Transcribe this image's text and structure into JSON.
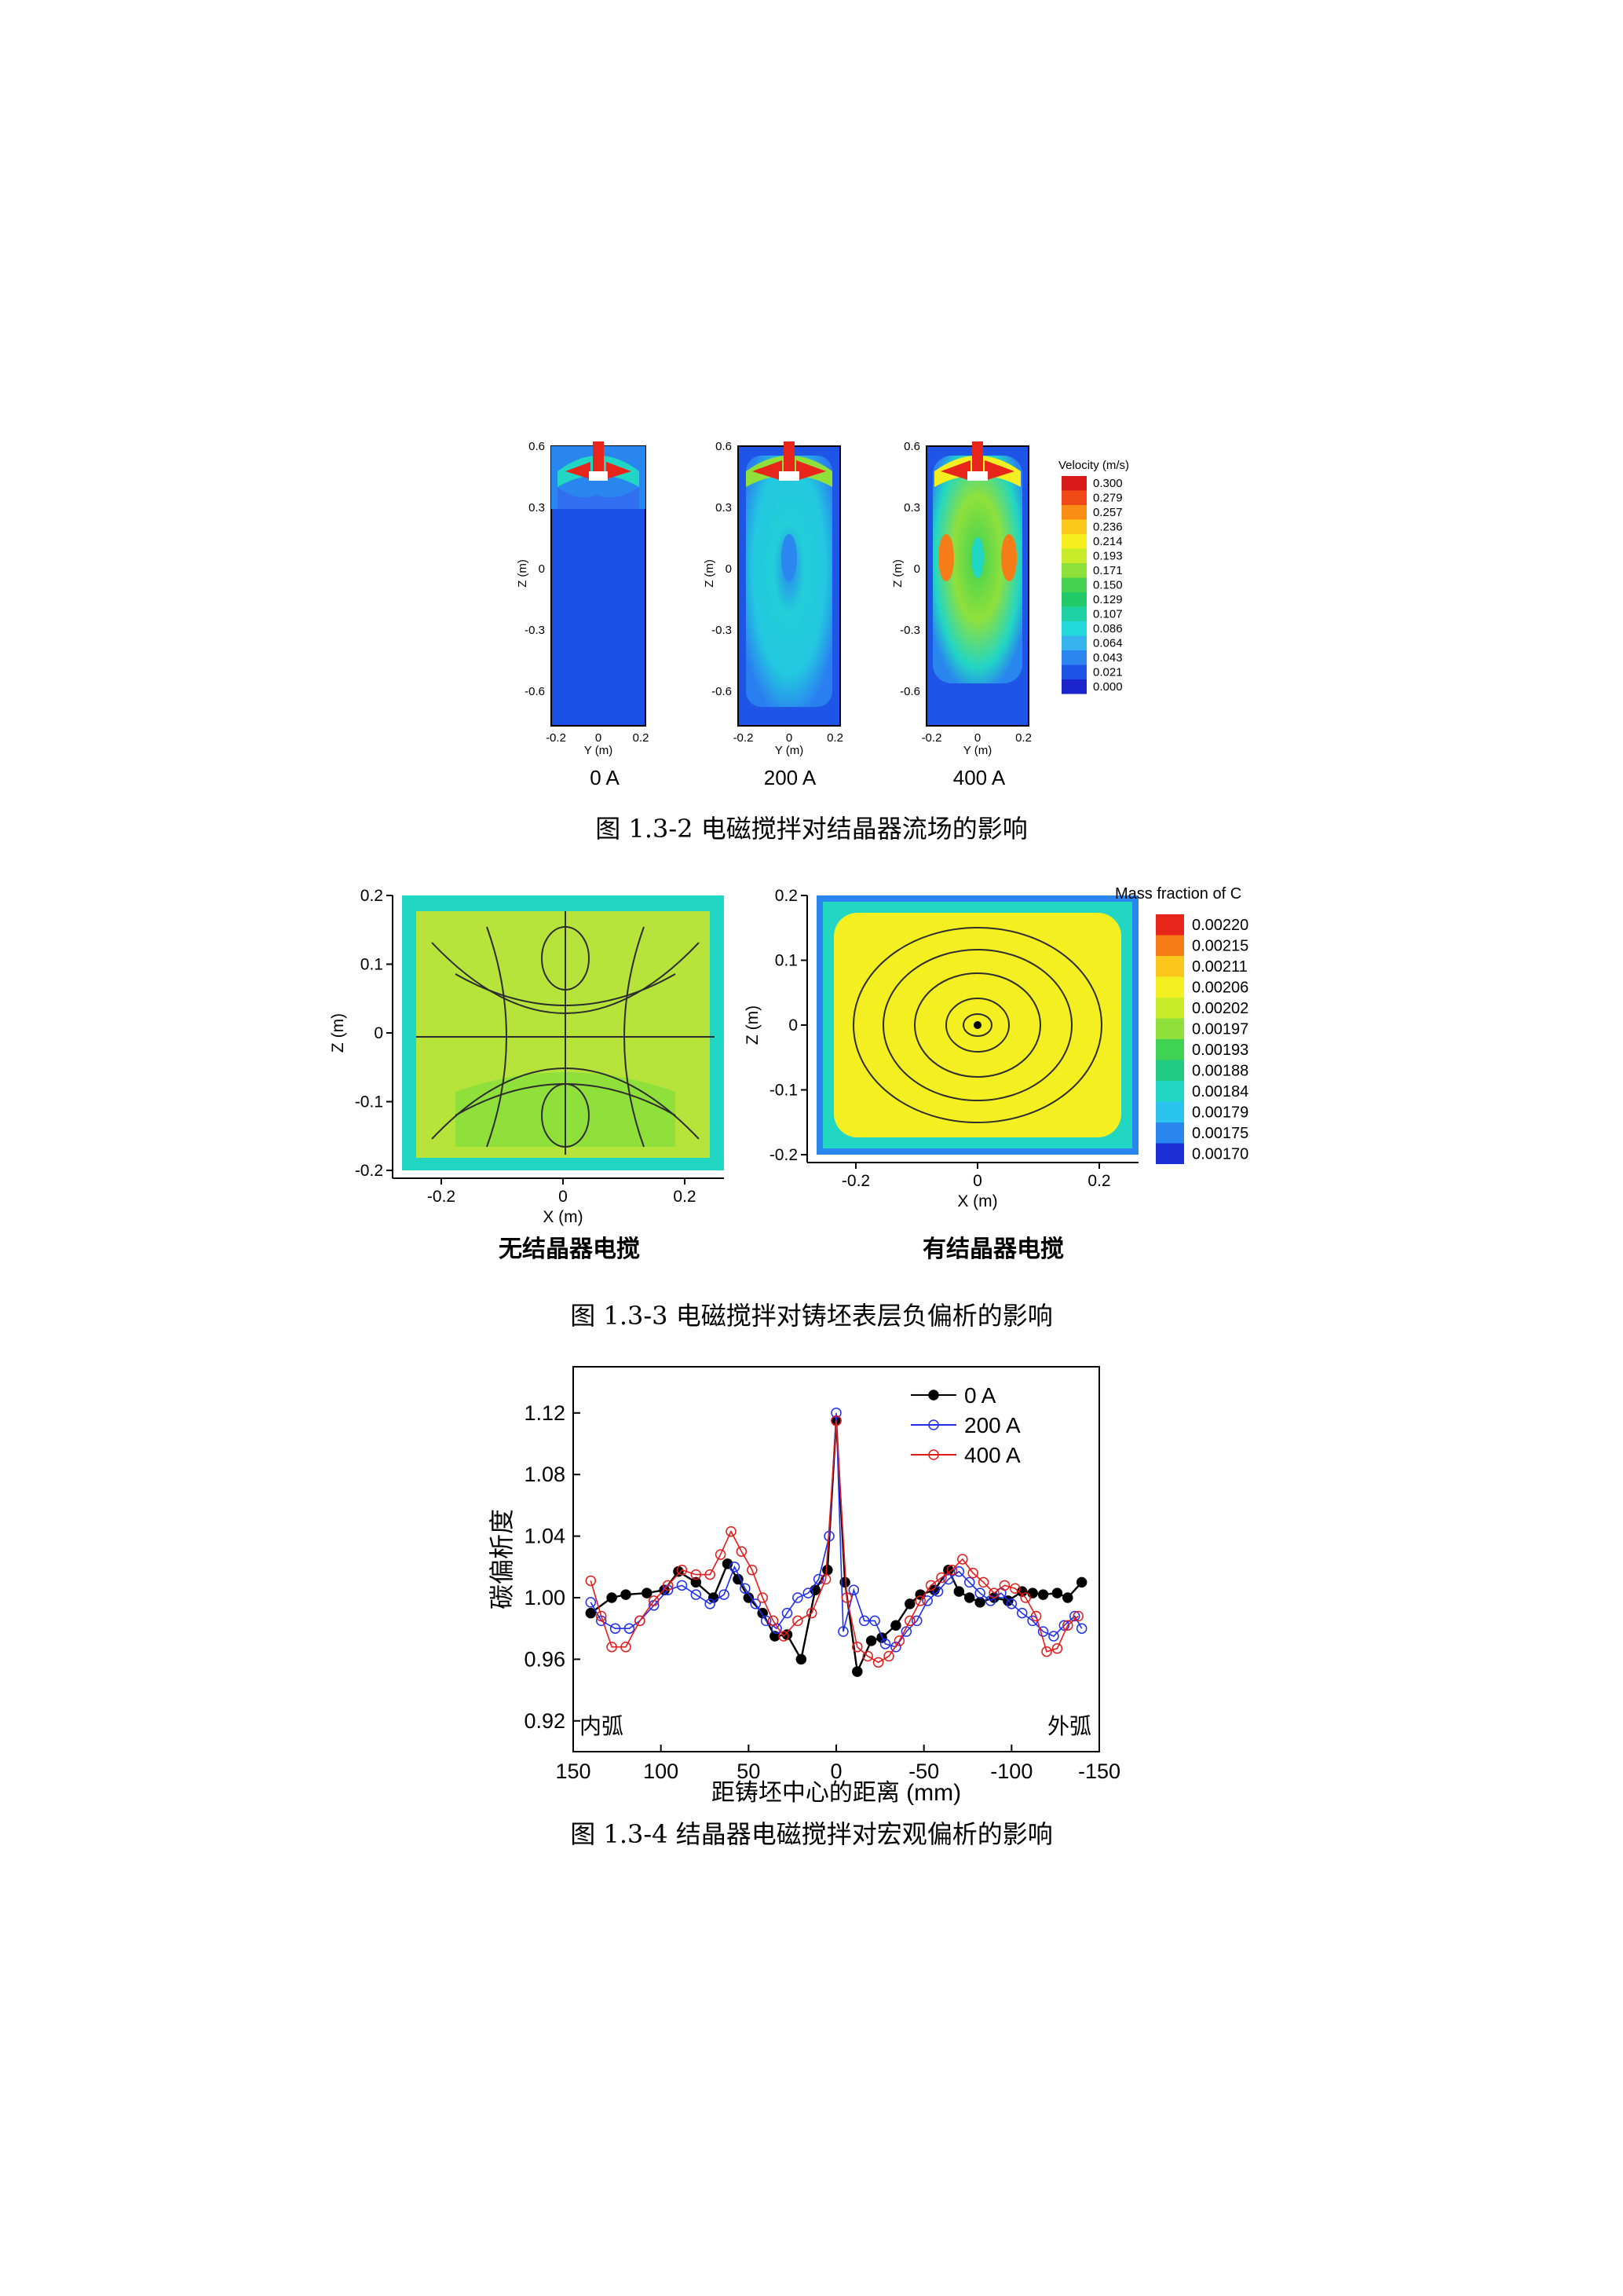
{
  "figure_2": {
    "caption": "图 1.3-2  电磁搅拌对结晶器流场的影响",
    "panels": [
      {
        "label": "0 A"
      },
      {
        "label": "200 A"
      },
      {
        "label": "400 A"
      }
    ],
    "y_axis_label": "Z (m)",
    "x_axis_label": "Y (m)",
    "y_ticks": [
      "0.6",
      "0.3",
      "0",
      "-0.3",
      "-0.6"
    ],
    "x_ticks": [
      "-0.2",
      "0",
      "0.2"
    ],
    "legend_title": "Velocity (m/s)",
    "legend_values": [
      "0.300",
      "0.279",
      "0.257",
      "0.236",
      "0.214",
      "0.193",
      "0.171",
      "0.150",
      "0.129",
      "0.107",
      "0.086",
      "0.064",
      "0.043",
      "0.021",
      "0.000"
    ],
    "legend_colors": [
      "#d7191c",
      "#f04b17",
      "#f98e14",
      "#fdc91b",
      "#f5ef1f",
      "#c8ec29",
      "#8ee03a",
      "#45d34f",
      "#21cb6a",
      "#1ed1a5",
      "#24d9d9",
      "#35b4ee",
      "#2b86f0",
      "#1f55e6",
      "#1a23cc"
    ]
  },
  "figure_3": {
    "caption": "图 1.3-3  电磁搅拌对铸坯表层负偏析的影响",
    "panels": [
      {
        "label": "无结晶器电搅"
      },
      {
        "label": "有结晶器电搅"
      }
    ],
    "y_axis_label": "Z (m)",
    "x_axis_label": "X (m)",
    "y_ticks": [
      "0.2",
      "0.1",
      "0",
      "-0.1",
      "-0.2"
    ],
    "x_ticks": [
      "-0.2",
      "0",
      "0.2"
    ],
    "legend_title": "Mass fraction of C",
    "legend_values": [
      "0.00220",
      "0.00215",
      "0.00211",
      "0.00206",
      "0.00202",
      "0.00197",
      "0.00193",
      "0.00188",
      "0.00184",
      "0.00179",
      "0.00175",
      "0.00170"
    ],
    "legend_colors": [
      "#e8251b",
      "#f67c17",
      "#fbc51c",
      "#f3ef20",
      "#c8ec2a",
      "#8fe03b",
      "#3fd253",
      "#22cb82",
      "#22d6c4",
      "#2bc4ee",
      "#2a86ef",
      "#1c2fd6"
    ]
  },
  "figure_4": {
    "caption": "图 1.3-4  结晶器电磁搅拌对宏观偏析的影响",
    "chart_data": {
      "type": "line",
      "xlabel": "距铸坯中心的距离 (mm)",
      "ylabel": "碳偏析度",
      "xlim": [
        150,
        -150
      ],
      "ylim": [
        0.9,
        1.15
      ],
      "x_ticks": [
        "150",
        "100",
        "50",
        "0",
        "-50",
        "-100",
        "-150"
      ],
      "x_tick_values": [
        150,
        100,
        50,
        0,
        -50,
        -100,
        -150
      ],
      "y_ticks": [
        "0.92",
        "0.96",
        "1.00",
        "1.04",
        "1.08",
        "1.12"
      ],
      "y_tick_values": [
        0.92,
        0.96,
        1.0,
        1.04,
        1.08,
        1.12
      ],
      "annotations": [
        "内弧",
        "外弧"
      ],
      "legend_position": "top-right",
      "series": [
        {
          "name": "0 A",
          "color": "#000000",
          "filled": true,
          "x": [
            140,
            128,
            120,
            108,
            98,
            90,
            80,
            70,
            62,
            56,
            50,
            42,
            35,
            28,
            20,
            12,
            5,
            0,
            -5,
            -12,
            -20,
            -26,
            -34,
            -42,
            -48,
            -56,
            -64,
            -70,
            -76,
            -82,
            -90,
            -98,
            -106,
            -112,
            -118,
            -126,
            -132,
            -140
          ],
          "y": [
            0.99,
            1.0,
            1.002,
            1.003,
            1.005,
            1.017,
            1.01,
            1.0,
            1.022,
            1.012,
            1.0,
            0.99,
            0.975,
            0.976,
            0.96,
            1.005,
            1.018,
            1.115,
            1.01,
            0.952,
            0.972,
            0.974,
            0.982,
            0.996,
            1.002,
            1.005,
            1.018,
            1.004,
            1.0,
            0.997,
            1.0,
            0.998,
            1.004,
            1.003,
            1.002,
            1.003,
            1.0,
            1.01
          ]
        },
        {
          "name": "200 A",
          "color": "#1f2ff0",
          "filled": false,
          "x": [
            140,
            134,
            126,
            118,
            112,
            104,
            96,
            88,
            80,
            72,
            64,
            58,
            52,
            46,
            40,
            34,
            28,
            22,
            16,
            10,
            4,
            0,
            -4,
            -10,
            -16,
            -22,
            -28,
            -34,
            -40,
            -46,
            -52,
            -58,
            -64,
            -70,
            -76,
            -82,
            -88,
            -94,
            -100,
            -106,
            -112,
            -118,
            -124,
            -130,
            -136,
            -140
          ],
          "y": [
            0.997,
            0.985,
            0.98,
            0.98,
            0.985,
            0.995,
            1.005,
            1.008,
            1.002,
            0.996,
            1.002,
            1.02,
            1.006,
            0.996,
            0.985,
            0.98,
            0.99,
            1.0,
            1.003,
            1.012,
            1.04,
            1.12,
            0.978,
            1.005,
            0.985,
            0.985,
            0.97,
            0.968,
            0.978,
            0.985,
            0.998,
            1.004,
            1.012,
            1.017,
            1.01,
            1.003,
            0.998,
            1.003,
            0.996,
            0.99,
            0.985,
            0.978,
            0.975,
            0.982,
            0.988,
            0.98
          ]
        },
        {
          "name": "400 A",
          "color": "#e21b1b",
          "filled": false,
          "x": [
            140,
            134,
            128,
            120,
            112,
            104,
            96,
            88,
            80,
            72,
            66,
            60,
            54,
            48,
            42,
            36,
            30,
            22,
            14,
            6,
            0,
            -6,
            -12,
            -18,
            -24,
            -30,
            -36,
            -42,
            -48,
            -54,
            -60,
            -66,
            -72,
            -78,
            -84,
            -90,
            -96,
            -102,
            -108,
            -114,
            -120,
            -126,
            -132,
            -138
          ],
          "y": [
            1.011,
            0.988,
            0.968,
            0.968,
            0.985,
            0.998,
            1.008,
            1.018,
            1.015,
            1.015,
            1.028,
            1.043,
            1.03,
            1.018,
            1.0,
            0.985,
            0.975,
            0.985,
            0.99,
            1.012,
            1.115,
            1.0,
            0.968,
            0.962,
            0.958,
            0.962,
            0.972,
            0.985,
            0.998,
            1.008,
            1.013,
            1.018,
            1.025,
            1.016,
            1.01,
            1.003,
            1.008,
            1.006,
            1.0,
            0.988,
            0.965,
            0.967,
            0.982,
            0.988
          ]
        }
      ]
    }
  }
}
